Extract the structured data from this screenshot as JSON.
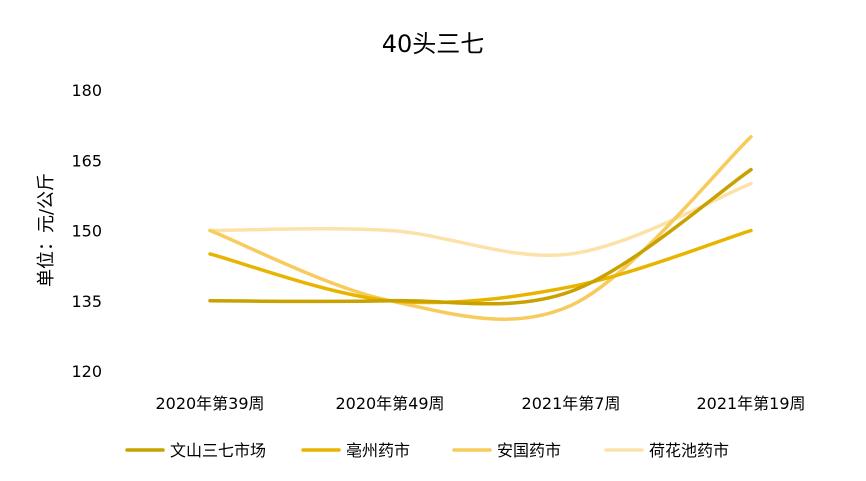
{
  "chart_data": {
    "type": "line",
    "title": "40头三七",
    "ylabel": "单位：元/公斤",
    "xlabel": "",
    "categories": [
      "2020年第39周",
      "2020年第49周",
      "2021年第7周",
      "2021年第19周"
    ],
    "ylim": [
      120,
      180
    ],
    "yticks": [
      120,
      135,
      150,
      165,
      180
    ],
    "smooth": true,
    "grid": false,
    "legend_position": "bottom",
    "series": [
      {
        "name": "文山三七市场",
        "values": [
          135,
          135,
          137,
          163
        ],
        "color": "#C9A100"
      },
      {
        "name": "亳州药市",
        "values": [
          145,
          135,
          138,
          150
        ],
        "color": "#E8B400"
      },
      {
        "name": "安国药市",
        "values": [
          150,
          135,
          134,
          170
        ],
        "color": "#F7CB5C"
      },
      {
        "name": "荷花池药市",
        "values": [
          150,
          150,
          145,
          160
        ],
        "color": "#FCE2A9"
      }
    ]
  }
}
